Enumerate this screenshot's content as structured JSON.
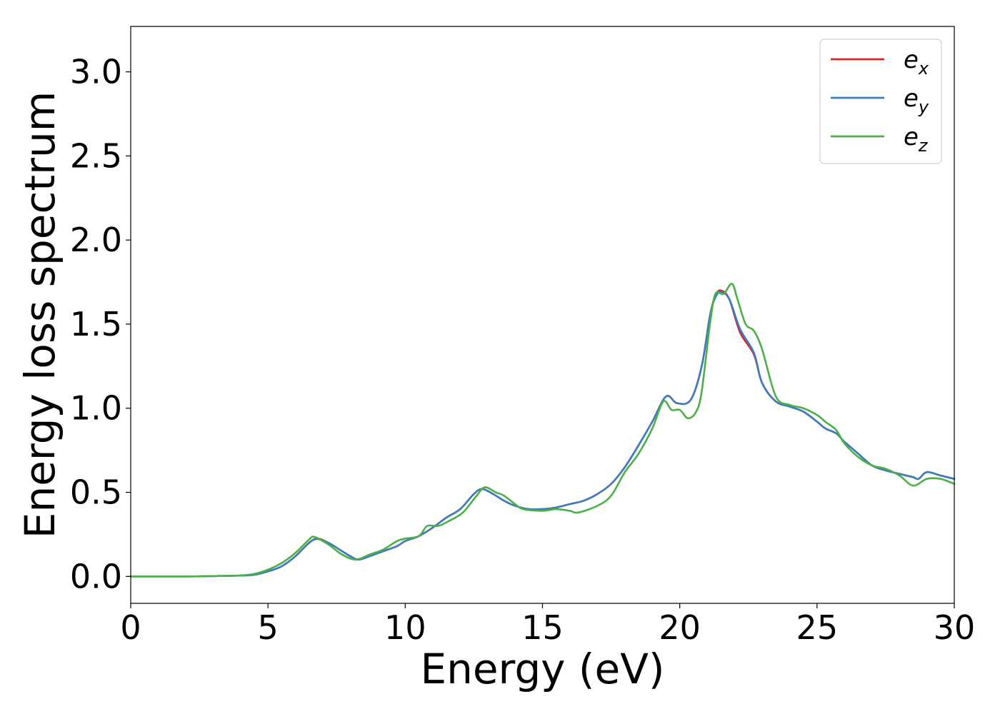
{
  "chart_data": {
    "type": "line",
    "xlabel": "Energy (eV)",
    "ylabel": "Energy loss spectrum",
    "xlim": [
      0,
      30
    ],
    "ylim": [
      -0.16,
      3.27
    ],
    "xticks": [
      0,
      5,
      10,
      15,
      20,
      25,
      30
    ],
    "xtick_labels": [
      "0",
      "5",
      "10",
      "15",
      "20",
      "25",
      "30"
    ],
    "yticks": [
      0.0,
      0.5,
      1.0,
      1.5,
      2.0,
      2.5,
      3.0
    ],
    "ytick_labels": [
      "0.0",
      "0.5",
      "1.0",
      "1.5",
      "2.0",
      "2.5",
      "3.0"
    ],
    "grid": false,
    "legend_position": "top-right",
    "series": [
      {
        "base": "e",
        "sub": "x",
        "color": "#d62728",
        "points": [
          [
            0,
            0
          ],
          [
            2,
            0
          ],
          [
            3,
            0.002
          ],
          [
            4,
            0.005
          ],
          [
            4.5,
            0.01
          ],
          [
            5,
            0.03
          ],
          [
            5.5,
            0.06
          ],
          [
            6,
            0.12
          ],
          [
            6.5,
            0.2
          ],
          [
            6.8,
            0.225
          ],
          [
            7.2,
            0.2
          ],
          [
            7.7,
            0.15
          ],
          [
            8,
            0.12
          ],
          [
            8.3,
            0.1
          ],
          [
            8.7,
            0.12
          ],
          [
            9.2,
            0.15
          ],
          [
            9.7,
            0.18
          ],
          [
            10,
            0.21
          ],
          [
            10.5,
            0.24
          ],
          [
            11,
            0.29
          ],
          [
            11.5,
            0.35
          ],
          [
            12,
            0.4
          ],
          [
            12.5,
            0.49
          ],
          [
            12.8,
            0.52
          ],
          [
            13.2,
            0.49
          ],
          [
            13.6,
            0.45
          ],
          [
            14,
            0.42
          ],
          [
            14.5,
            0.4
          ],
          [
            15,
            0.4
          ],
          [
            15.5,
            0.41
          ],
          [
            16,
            0.43
          ],
          [
            16.5,
            0.45
          ],
          [
            17,
            0.49
          ],
          [
            17.5,
            0.55
          ],
          [
            18,
            0.65
          ],
          [
            18.5,
            0.78
          ],
          [
            19,
            0.92
          ],
          [
            19.5,
            1.07
          ],
          [
            19.9,
            1.03
          ],
          [
            20.4,
            1.05
          ],
          [
            20.8,
            1.25
          ],
          [
            21.1,
            1.55
          ],
          [
            21.3,
            1.67
          ],
          [
            21.5,
            1.7
          ],
          [
            21.8,
            1.65
          ],
          [
            22.2,
            1.45
          ],
          [
            22.7,
            1.32
          ],
          [
            23,
            1.15
          ],
          [
            23.5,
            1.04
          ],
          [
            24,
            1.01
          ],
          [
            24.5,
            0.98
          ],
          [
            25,
            0.92
          ],
          [
            25.3,
            0.88
          ],
          [
            25.7,
            0.85
          ],
          [
            26,
            0.8
          ],
          [
            26.5,
            0.73
          ],
          [
            27,
            0.66
          ],
          [
            27.5,
            0.63
          ],
          [
            28,
            0.61
          ],
          [
            28.5,
            0.59
          ],
          [
            28.7,
            0.58
          ],
          [
            29,
            0.62
          ],
          [
            29.5,
            0.6
          ],
          [
            30,
            0.58
          ]
        ]
      },
      {
        "base": "e",
        "sub": "y",
        "color": "#3a7ec0",
        "points": [
          [
            0,
            0
          ],
          [
            2,
            0
          ],
          [
            3,
            0.002
          ],
          [
            4,
            0.005
          ],
          [
            4.5,
            0.01
          ],
          [
            5,
            0.03
          ],
          [
            5.5,
            0.06
          ],
          [
            6,
            0.12
          ],
          [
            6.5,
            0.2
          ],
          [
            6.8,
            0.222
          ],
          [
            7.2,
            0.2
          ],
          [
            7.7,
            0.15
          ],
          [
            8,
            0.12
          ],
          [
            8.3,
            0.1
          ],
          [
            8.7,
            0.12
          ],
          [
            9.2,
            0.15
          ],
          [
            9.7,
            0.18
          ],
          [
            10,
            0.21
          ],
          [
            10.5,
            0.24
          ],
          [
            11,
            0.29
          ],
          [
            11.5,
            0.35
          ],
          [
            12,
            0.4
          ],
          [
            12.5,
            0.49
          ],
          [
            12.8,
            0.52
          ],
          [
            13.2,
            0.49
          ],
          [
            13.6,
            0.45
          ],
          [
            14,
            0.42
          ],
          [
            14.5,
            0.4
          ],
          [
            15,
            0.4
          ],
          [
            15.5,
            0.41
          ],
          [
            16,
            0.43
          ],
          [
            16.5,
            0.45
          ],
          [
            17,
            0.49
          ],
          [
            17.5,
            0.55
          ],
          [
            18,
            0.65
          ],
          [
            18.5,
            0.78
          ],
          [
            19,
            0.92
          ],
          [
            19.5,
            1.07
          ],
          [
            19.9,
            1.03
          ],
          [
            20.4,
            1.05
          ],
          [
            20.8,
            1.25
          ],
          [
            21.1,
            1.55
          ],
          [
            21.3,
            1.66
          ],
          [
            21.5,
            1.69
          ],
          [
            21.8,
            1.65
          ],
          [
            22.2,
            1.47
          ],
          [
            22.7,
            1.33
          ],
          [
            23,
            1.15
          ],
          [
            23.5,
            1.04
          ],
          [
            24,
            1.01
          ],
          [
            24.5,
            0.98
          ],
          [
            25,
            0.92
          ],
          [
            25.3,
            0.88
          ],
          [
            25.7,
            0.85
          ],
          [
            26,
            0.8
          ],
          [
            26.5,
            0.73
          ],
          [
            27,
            0.66
          ],
          [
            27.5,
            0.63
          ],
          [
            28,
            0.61
          ],
          [
            28.5,
            0.59
          ],
          [
            28.7,
            0.58
          ],
          [
            29,
            0.62
          ],
          [
            29.5,
            0.6
          ],
          [
            30,
            0.58
          ]
        ]
      },
      {
        "base": "e",
        "sub": "z",
        "color": "#4daf4a",
        "points": [
          [
            0,
            0
          ],
          [
            2,
            0
          ],
          [
            3,
            0.002
          ],
          [
            4,
            0.006
          ],
          [
            4.5,
            0.015
          ],
          [
            5,
            0.04
          ],
          [
            5.5,
            0.08
          ],
          [
            6,
            0.14
          ],
          [
            6.5,
            0.22
          ],
          [
            6.7,
            0.235
          ],
          [
            7.2,
            0.19
          ],
          [
            7.7,
            0.13
          ],
          [
            8.2,
            0.1
          ],
          [
            8.7,
            0.13
          ],
          [
            9.2,
            0.16
          ],
          [
            9.7,
            0.21
          ],
          [
            10,
            0.225
          ],
          [
            10.5,
            0.24
          ],
          [
            10.8,
            0.3
          ],
          [
            11.2,
            0.3
          ],
          [
            11.6,
            0.33
          ],
          [
            12.1,
            0.38
          ],
          [
            12.6,
            0.48
          ],
          [
            12.9,
            0.53
          ],
          [
            13.3,
            0.5
          ],
          [
            13.6,
            0.48
          ],
          [
            14,
            0.43
          ],
          [
            14.3,
            0.4
          ],
          [
            15,
            0.39
          ],
          [
            15.5,
            0.4
          ],
          [
            16,
            0.39
          ],
          [
            16.3,
            0.38
          ],
          [
            17,
            0.42
          ],
          [
            17.5,
            0.48
          ],
          [
            18,
            0.62
          ],
          [
            18.5,
            0.73
          ],
          [
            19,
            0.88
          ],
          [
            19.4,
            1.04
          ],
          [
            19.7,
            0.99
          ],
          [
            20,
            0.99
          ],
          [
            20.3,
            0.94
          ],
          [
            20.6,
            0.98
          ],
          [
            20.8,
            1.1
          ],
          [
            21.1,
            1.5
          ],
          [
            21.3,
            1.68
          ],
          [
            21.6,
            1.68
          ],
          [
            21.9,
            1.74
          ],
          [
            22.1,
            1.65
          ],
          [
            22.4,
            1.5
          ],
          [
            22.7,
            1.46
          ],
          [
            23,
            1.35
          ],
          [
            23.5,
            1.07
          ],
          [
            24,
            1.02
          ],
          [
            24.5,
            1.0
          ],
          [
            25,
            0.96
          ],
          [
            25.3,
            0.92
          ],
          [
            25.7,
            0.87
          ],
          [
            26,
            0.79
          ],
          [
            26.5,
            0.71
          ],
          [
            27,
            0.66
          ],
          [
            27.5,
            0.64
          ],
          [
            28,
            0.6
          ],
          [
            28.5,
            0.54
          ],
          [
            29,
            0.58
          ],
          [
            29.5,
            0.58
          ],
          [
            30,
            0.55
          ]
        ]
      }
    ]
  }
}
